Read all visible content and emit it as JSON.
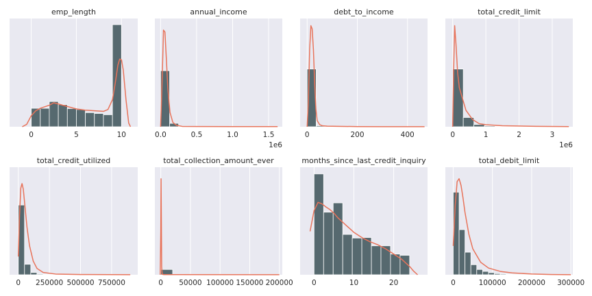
{
  "colors": {
    "bar": "#56696f",
    "bar_edge": "#ffffff",
    "kde": "#e8735a",
    "panel_bg": "#e9e9f1",
    "grid": "#ffffff",
    "text": "#262626"
  },
  "chart_data": [
    {
      "type": "bar",
      "title": "emp_length",
      "bin_edges": [
        0,
        1,
        2,
        3,
        4,
        5,
        6,
        7,
        8,
        9,
        10
      ],
      "counts": [
        0.15,
        0.15,
        0.205,
        0.18,
        0.148,
        0.14,
        0.115,
        0.108,
        0.098,
        0.83
      ],
      "xlim": [
        -2.4,
        11.8
      ],
      "ylim": [
        0,
        0.88
      ],
      "xticks": [
        0,
        5,
        10
      ],
      "xtick_labels": [
        "0",
        "5",
        "10"
      ],
      "offset_text": "",
      "kde": {
        "x": [
          -1,
          -0.5,
          0,
          0.5,
          1,
          2,
          2.5,
          3,
          4,
          5,
          6,
          7,
          8,
          8.5,
          9,
          9.3,
          9.6,
          9.8,
          10,
          10.2,
          10.5,
          10.8,
          11
        ],
        "y": [
          0.0,
          0.02,
          0.09,
          0.13,
          0.15,
          0.175,
          0.195,
          0.185,
          0.165,
          0.145,
          0.135,
          0.13,
          0.125,
          0.14,
          0.22,
          0.35,
          0.5,
          0.55,
          0.545,
          0.46,
          0.22,
          0.03,
          0.0
        ]
      }
    },
    {
      "type": "bar",
      "title": "annual_income",
      "bin_edges": [
        0,
        125000,
        250000,
        375000,
        500000,
        625000,
        750000,
        875000,
        1000000,
        1125000,
        1250000,
        1375000,
        1500000,
        1625000
      ],
      "counts": [
        0.58,
        0.035,
        0.005,
        0,
        0,
        0,
        0,
        0,
        0,
        0,
        0,
        0,
        0
      ],
      "xlim": [
        -80000,
        1690000
      ],
      "ylim": [
        0,
        1.12
      ],
      "xticks": [
        0,
        500000,
        1000000,
        1500000
      ],
      "xtick_labels": [
        "0.0",
        "0.5",
        "1.0",
        "1.5"
      ],
      "offset_text": "1e6",
      "kde": {
        "x": [
          0,
          20000,
          40000,
          60000,
          80000,
          100000,
          130000,
          170000,
          220000,
          300000,
          500000,
          1000000,
          1625000
        ],
        "y": [
          0.0,
          0.45,
          1.0,
          0.98,
          0.7,
          0.4,
          0.15,
          0.045,
          0.015,
          0.004,
          0.003,
          0.002,
          0.002
        ]
      }
    },
    {
      "type": "bar",
      "title": "debt_to_income",
      "bin_edges": [
        0,
        36,
        72,
        108,
        144,
        180,
        216,
        252,
        288,
        324,
        360,
        396,
        432,
        468
      ],
      "counts": [
        0.56,
        0.01,
        0,
        0,
        0,
        0,
        0,
        0,
        0,
        0,
        0,
        0,
        0
      ],
      "xlim": [
        -28,
        480
      ],
      "ylim": [
        0,
        1.05
      ],
      "xticks": [
        0,
        200,
        400
      ],
      "xtick_labels": [
        "0",
        "200",
        "400"
      ],
      "offset_text": "",
      "kde": {
        "x": [
          0,
          5,
          10,
          15,
          20,
          25,
          30,
          35,
          40,
          50,
          60,
          80,
          120,
          200,
          300,
          468
        ],
        "y": [
          0.0,
          0.25,
          0.75,
          0.98,
          0.95,
          0.75,
          0.42,
          0.17,
          0.06,
          0.02,
          0.01,
          0.006,
          0.004,
          0.002,
          0.001,
          0.001
        ]
      }
    },
    {
      "type": "bar",
      "title": "total_credit_limit",
      "bin_edges": [
        0,
        320000,
        640000,
        960000,
        1280000,
        1600000,
        1920000,
        2240000,
        2560000,
        2880000,
        3200000,
        3520000
      ],
      "counts": [
        0.56,
        0.09,
        0.022,
        0.008,
        0.004,
        0.002,
        0.001,
        0.001,
        0,
        0,
        0
      ],
      "xlim": [
        -220000,
        3620000
      ],
      "ylim": [
        0,
        1.05
      ],
      "xticks": [
        0,
        1000000,
        2000000,
        3000000
      ],
      "xtick_labels": [
        "0",
        "1",
        "2",
        "3"
      ],
      "offset_text": "1e6",
      "kde": {
        "x": [
          0,
          30000,
          60000,
          100000,
          150000,
          200000,
          300000,
          400000,
          600000,
          800000,
          1000000,
          1500000,
          2500000,
          3500000
        ],
        "y": [
          0.0,
          0.55,
          0.98,
          0.8,
          0.52,
          0.38,
          0.27,
          0.16,
          0.07,
          0.03,
          0.02,
          0.01,
          0.004,
          0.002
        ]
      }
    },
    {
      "type": "bar",
      "title": "total_credit_utilized",
      "bin_edges": [
        0,
        50000,
        100000,
        150000,
        200000,
        250000,
        300000,
        350000,
        400000,
        450000,
        500000,
        550000,
        600000,
        650000,
        700000,
        750000,
        800000,
        850000,
        900000
      ],
      "counts": [
        0.765,
        0.115,
        0.025,
        0.008,
        0.004,
        0.003,
        0.002,
        0.001,
        0.001,
        0.001,
        0,
        0,
        0,
        0,
        0,
        0,
        0,
        0
      ],
      "xlim": [
        -70000,
        960000
      ],
      "ylim": [
        0,
        1.18
      ],
      "xticks": [
        0,
        250000,
        500000,
        750000
      ],
      "xtick_labels": [
        "0",
        "250000",
        "500000",
        "750000"
      ],
      "offset_text": "",
      "kde": {
        "x": [
          0,
          10000,
          20000,
          30000,
          40000,
          50000,
          70000,
          90000,
          120000,
          150000,
          200000,
          300000,
          500000,
          900000
        ],
        "y": [
          0.2,
          0.65,
          0.95,
          1.0,
          0.94,
          0.8,
          0.52,
          0.32,
          0.15,
          0.07,
          0.025,
          0.008,
          0.003,
          0.001
        ]
      }
    },
    {
      "type": "bar",
      "title": "total_collection_amount_ever",
      "bin_edges": [
        0,
        20000,
        40000,
        60000,
        80000,
        100000,
        120000,
        140000,
        160000,
        180000,
        200000
      ],
      "counts": [
        0.055,
        0.005,
        0,
        0,
        0,
        0,
        0,
        0,
        0,
        0
      ],
      "xlim": [
        -10000,
        205000
      ],
      "ylim": [
        0,
        1.12
      ],
      "xticks": [
        0,
        50000,
        100000,
        150000,
        200000
      ],
      "xtick_labels": [
        "0",
        "50000",
        "100000",
        "150000",
        "200000"
      ],
      "offset_text": "",
      "kde": {
        "x": [
          -1000,
          0,
          500,
          1000,
          1500,
          2500,
          5000,
          200000
        ],
        "y": [
          0.0,
          0.45,
          1.0,
          0.55,
          0.08,
          0.005,
          0.002,
          0.001
        ]
      }
    },
    {
      "type": "bar",
      "title": "months_since_last_credit_inquiry",
      "bin_edges": [
        0,
        2.4,
        4.8,
        7.2,
        9.6,
        12.0,
        14.4,
        16.8,
        19.2,
        21.6,
        24.0
      ],
      "counts": [
        0.975,
        0.605,
        0.695,
        0.39,
        0.355,
        0.36,
        0.28,
        0.28,
        0.2,
        0.188
      ],
      "xlim": [
        -3.5,
        28.5
      ],
      "ylim": [
        0,
        1.04
      ],
      "xticks": [
        0,
        10,
        20
      ],
      "xtick_labels": [
        "0",
        "10",
        "20"
      ],
      "offset_text": "",
      "kde": {
        "x": [
          -1,
          0,
          1,
          2,
          3,
          4,
          5,
          6,
          8,
          10,
          12,
          14,
          16,
          18,
          20,
          22,
          24,
          25,
          26
        ],
        "y": [
          0.42,
          0.62,
          0.7,
          0.685,
          0.655,
          0.63,
          0.595,
          0.55,
          0.48,
          0.41,
          0.36,
          0.32,
          0.29,
          0.25,
          0.2,
          0.15,
          0.08,
          0.035,
          0.0
        ]
      }
    },
    {
      "type": "bar",
      "title": "total_debit_limit",
      "bin_edges": [
        0,
        15000,
        30000,
        45000,
        60000,
        75000,
        90000,
        105000,
        120000,
        135000,
        150000,
        165000,
        180000,
        195000,
        210000,
        225000,
        240000,
        255000,
        270000,
        285000,
        300000
      ],
      "counts": [
        0.86,
        0.47,
        0.235,
        0.105,
        0.055,
        0.035,
        0.022,
        0.012,
        0.008,
        0.005,
        0.003,
        0.002,
        0.002,
        0.001,
        0.001,
        0.001,
        0,
        0,
        0,
        0
      ],
      "xlim": [
        -20000,
        305000
      ],
      "ylim": [
        0,
        1.12
      ],
      "xticks": [
        0,
        100000,
        200000,
        300000
      ],
      "xtick_labels": [
        "0",
        "100000",
        "200000",
        "300000"
      ],
      "offset_text": "",
      "kde": {
        "x": [
          0,
          5000,
          10000,
          15000,
          20000,
          25000,
          30000,
          40000,
          50000,
          70000,
          90000,
          120000,
          150000,
          200000,
          250000,
          300000
        ],
        "y": [
          0.3,
          0.72,
          0.97,
          1.0,
          0.93,
          0.8,
          0.65,
          0.42,
          0.27,
          0.13,
          0.07,
          0.035,
          0.02,
          0.008,
          0.003,
          0.001
        ]
      }
    }
  ]
}
